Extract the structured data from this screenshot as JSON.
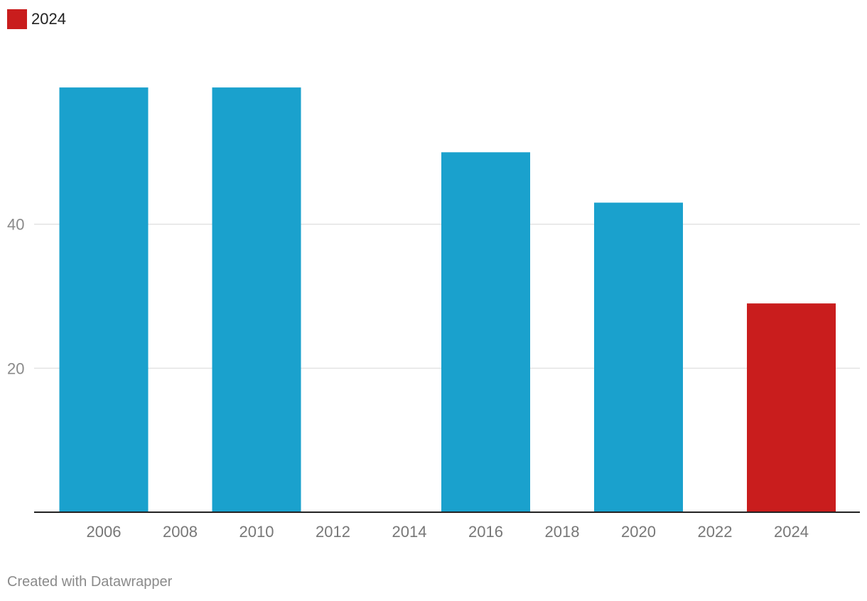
{
  "legend": {
    "label": "2024",
    "color": "#c91d1d"
  },
  "credit": "Created with Datawrapper",
  "colors": {
    "bar": "#1aa1cd",
    "highlight": "#c91d1d",
    "grid": "#e3e3e3",
    "axis": "#222222",
    "tick_label": "#8a8a8a",
    "year_label": "#777777"
  },
  "chart_data": {
    "type": "bar",
    "categories": [
      "2006",
      "2008",
      "2010",
      "2012",
      "2014",
      "2016",
      "2018",
      "2020",
      "2022",
      "2024"
    ],
    "values": [
      59,
      null,
      59,
      null,
      null,
      50,
      null,
      43,
      null,
      29
    ],
    "highlight": [
      "2024"
    ],
    "ylim": [
      0,
      60
    ],
    "yticks": [
      20,
      40
    ],
    "grid": true,
    "legend_position": "top-left"
  }
}
